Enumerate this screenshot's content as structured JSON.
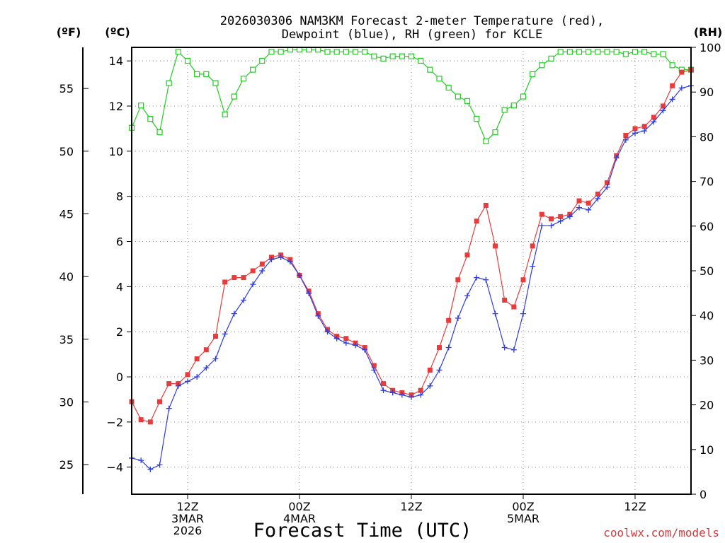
{
  "chart_data": {
    "type": "line",
    "title_line1": "2026030306 NAM3KM Forecast 2-meter Temperature (red),",
    "title_line2": "Dewpoint (blue), RH (green) for KCLE",
    "xlabel": "Forecast Time (UTC)",
    "credit": "coolwx.com/models",
    "units": {
      "fahrenheit": "(ºF)",
      "celsius": "(ºC)",
      "rh": "(RH)"
    },
    "x": [
      0,
      1,
      2,
      3,
      4,
      5,
      6,
      7,
      8,
      9,
      10,
      11,
      12,
      13,
      14,
      15,
      16,
      17,
      18,
      19,
      20,
      21,
      22,
      23,
      24,
      25,
      26,
      27,
      28,
      29,
      30,
      31,
      32,
      33,
      34,
      35,
      36,
      37,
      38,
      39,
      40,
      41,
      42,
      43,
      44,
      45,
      46,
      47,
      48,
      49,
      50,
      51,
      52,
      53,
      54,
      55,
      56,
      57,
      58,
      59,
      60
    ],
    "x_range": [
      0,
      60
    ],
    "x_ticks": [
      {
        "h": 6,
        "lines": [
          "12Z",
          "3MAR",
          "2026"
        ]
      },
      {
        "h": 18,
        "lines": [
          "00Z",
          "4MAR"
        ]
      },
      {
        "h": 30,
        "lines": [
          "12Z"
        ]
      },
      {
        "h": 42,
        "lines": [
          "00Z",
          "5MAR"
        ]
      },
      {
        "h": 54,
        "lines": [
          "12Z"
        ]
      }
    ],
    "y_celsius_range": [
      -5.2,
      14.6
    ],
    "y_celsius_ticks": [
      -4,
      -2,
      0,
      2,
      4,
      6,
      8,
      10,
      12,
      14
    ],
    "y_fahrenheit_ticks": [
      25,
      30,
      35,
      40,
      45,
      50,
      55
    ],
    "y_rh_range": [
      0,
      100
    ],
    "y_rh_ticks": [
      0,
      10,
      20,
      30,
      40,
      50,
      60,
      70,
      80,
      90,
      100
    ],
    "grid": true,
    "series": [
      {
        "name": "2-meter Temperature (°C)",
        "color": "#e83c3c",
        "marker": "filled-square",
        "axis": "celsius",
        "values": [
          -1.1,
          -1.9,
          -2.0,
          -1.1,
          -0.3,
          -0.3,
          0.1,
          0.8,
          1.2,
          1.8,
          4.2,
          4.4,
          4.4,
          4.7,
          5.0,
          5.3,
          5.4,
          5.2,
          4.5,
          3.8,
          2.8,
          2.1,
          1.8,
          1.7,
          1.5,
          1.3,
          0.5,
          -0.3,
          -0.6,
          -0.7,
          -0.8,
          -0.6,
          0.3,
          1.3,
          2.5,
          4.3,
          5.4,
          6.9,
          7.6,
          5.8,
          3.4,
          3.1,
          4.3,
          5.8,
          7.2,
          7.0,
          7.1,
          7.2,
          7.8,
          7.7,
          8.1,
          8.6,
          9.8,
          10.7,
          11.0,
          11.1,
          11.5,
          12.0,
          12.9,
          13.5,
          13.6
        ]
      },
      {
        "name": "Dewpoint (°C)",
        "color": "#2e3ce0",
        "marker": "plus",
        "axis": "celsius",
        "values": [
          -3.6,
          -3.7,
          -4.1,
          -3.9,
          -1.4,
          -0.4,
          -0.2,
          0.0,
          0.4,
          0.8,
          1.9,
          2.8,
          3.4,
          4.1,
          4.7,
          5.2,
          5.3,
          5.1,
          4.5,
          3.7,
          2.7,
          2.0,
          1.7,
          1.5,
          1.4,
          1.2,
          0.3,
          -0.6,
          -0.7,
          -0.8,
          -0.9,
          -0.8,
          -0.4,
          0.3,
          1.3,
          2.6,
          3.6,
          4.4,
          4.3,
          2.8,
          1.3,
          1.2,
          2.8,
          4.9,
          6.7,
          6.7,
          6.9,
          7.1,
          7.5,
          7.4,
          7.9,
          8.4,
          9.7,
          10.5,
          10.8,
          10.9,
          11.3,
          11.8,
          12.3,
          12.8,
          12.9
        ]
      },
      {
        "name": "RH (%)",
        "color": "#22cc22",
        "marker": "open-square",
        "axis": "rh",
        "values": [
          82,
          87,
          84,
          81,
          92,
          99,
          97,
          94,
          94,
          92,
          85,
          89,
          93,
          95,
          97,
          99,
          99,
          99.5,
          99.5,
          99.5,
          99.5,
          99,
          99,
          99,
          99,
          99,
          98,
          97.5,
          98,
          98,
          98,
          97,
          95,
          93,
          91,
          89,
          88,
          84,
          79,
          81,
          86,
          87,
          89,
          94,
          96,
          97.5,
          99,
          99,
          99,
          99,
          99,
          99,
          99,
          98.5,
          99,
          99,
          98.5,
          98.5,
          96,
          95,
          95
        ]
      }
    ]
  }
}
